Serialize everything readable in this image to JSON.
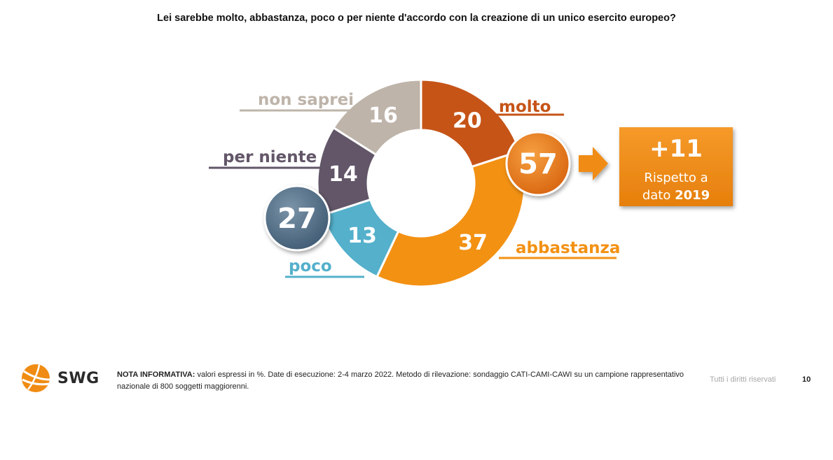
{
  "title": "Lei sarebbe molto, abbastanza, poco o per niente d'accordo con la creazione di un unico esercito europeo?",
  "chart_data": {
    "type": "pie",
    "categories": [
      "molto",
      "abbastanza",
      "poco",
      "per niente",
      "non saprei"
    ],
    "values": [
      20,
      37,
      13,
      14,
      16
    ],
    "colors": [
      "#C65417",
      "#F39113",
      "#54B0CB",
      "#625668",
      "#BEB4AA"
    ],
    "label_colors": [
      "#C65417",
      "#F39113",
      "#54B0CB",
      "#625668",
      "#BEB4AA"
    ],
    "summaries": [
      {
        "value": "57",
        "color": "#E37A15"
      },
      {
        "value": "27",
        "color": "#4F6E87"
      }
    ],
    "callout": {
      "value": "+11",
      "line1": "Rispetto a",
      "line2_prefix": "dato ",
      "line2_bold": "2019",
      "color": "#F08C13"
    },
    "arrow_color": "#F08C13"
  },
  "footer": {
    "note_label": "NOTA INFORMATIVA:",
    "note_text": " valori espressi in %. Date di esecuzione: 2-4 marzo 2022. Metodo di rilevazione: sondaggio CATI-CAMI-CAWI su un campione rappresentativo nazionale di 800 soggetti maggiorenni.",
    "logo_text": "SWG",
    "logo_icon": "orange-globe-icon",
    "rights": "Tutti i diritti riservati",
    "page_number": "10"
  }
}
